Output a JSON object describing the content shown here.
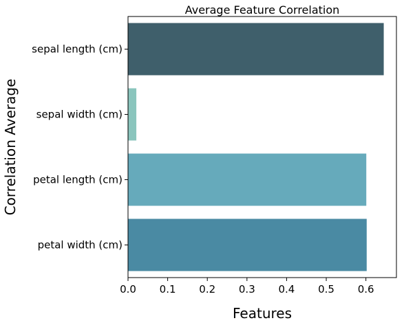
{
  "chart_data": {
    "type": "bar",
    "orientation": "horizontal",
    "title": "Average Feature Correlation",
    "xlabel": "Features",
    "ylabel": "Correlation Average",
    "categories": [
      "sepal length (cm)",
      "sepal width (cm)",
      "petal length (cm)",
      "petal width (cm)"
    ],
    "values": [
      0.645,
      0.021,
      0.601,
      0.602
    ],
    "colors": [
      "#3f5f6b",
      "#8ac5bd",
      "#66aabb",
      "#4a8aa3"
    ],
    "xlim": [
      0,
      0.677
    ],
    "xticks": [
      0.0,
      0.1,
      0.2,
      0.3,
      0.4,
      0.5,
      0.6
    ],
    "xtick_labels": [
      "0.0",
      "0.1",
      "0.2",
      "0.3",
      "0.4",
      "0.5",
      "0.6"
    ],
    "grid": false,
    "legend": "none"
  }
}
